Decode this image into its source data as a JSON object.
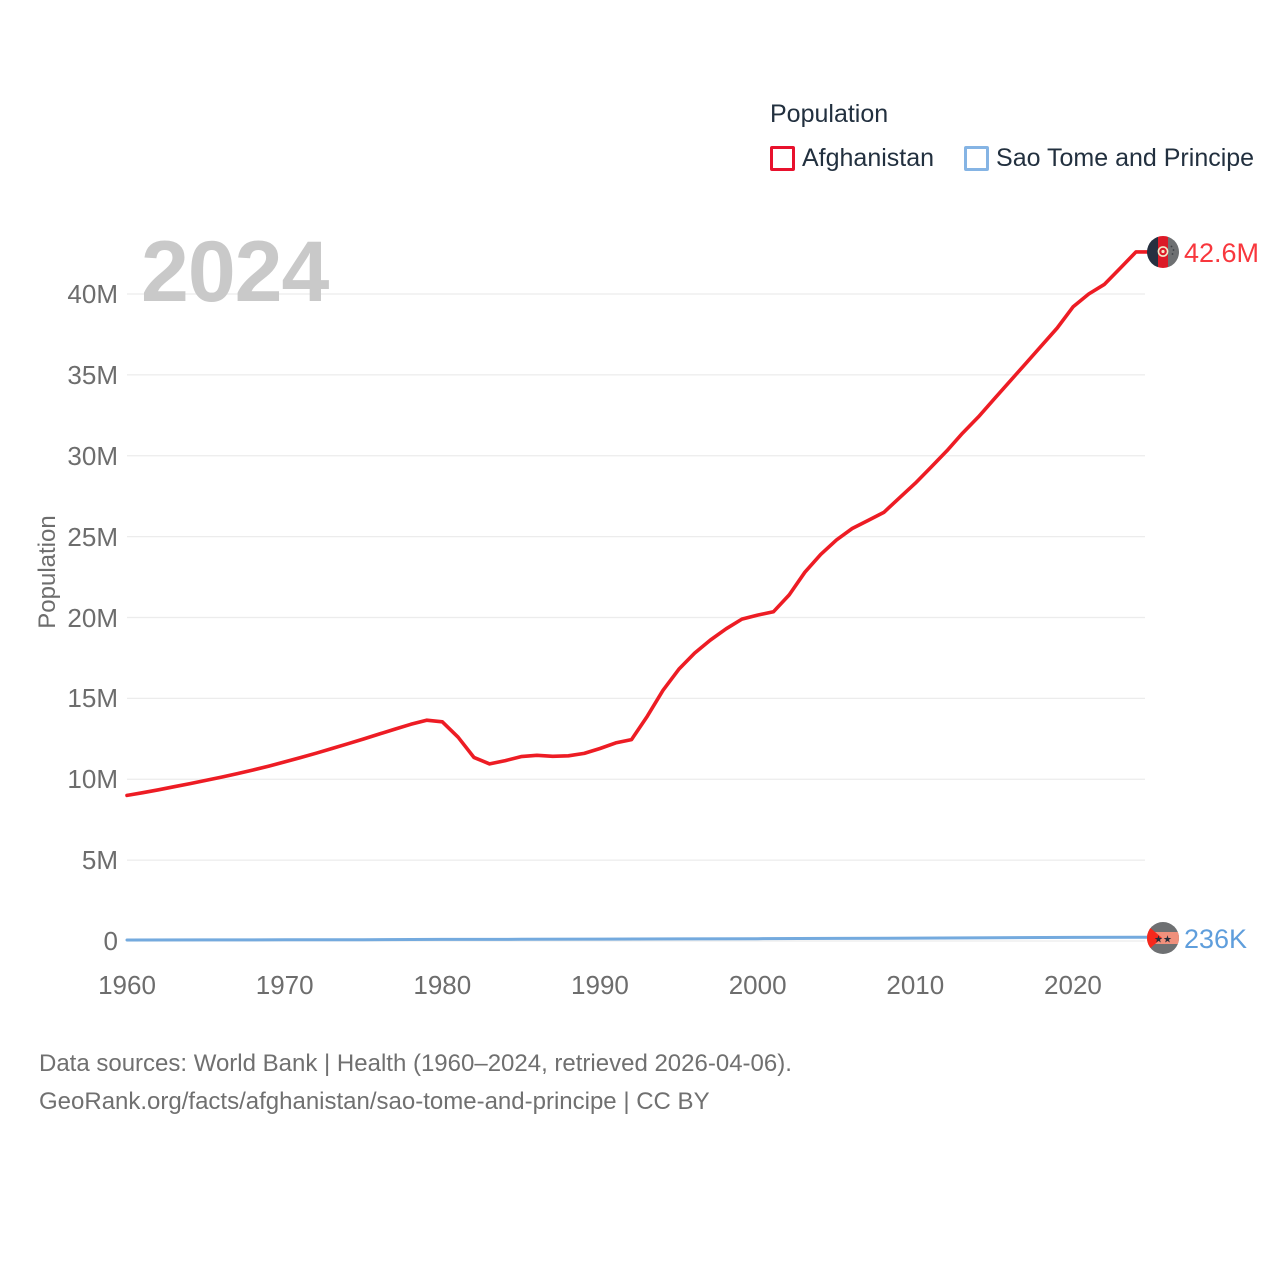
{
  "legend": {
    "title": "Population",
    "items": [
      {
        "label": "Afghanistan",
        "swatch_color": "#e8112d"
      },
      {
        "label": "Sao Tome and Principe",
        "swatch_color": "#85b4e4"
      }
    ]
  },
  "watermark_year": "2024",
  "chart_data": {
    "type": "line",
    "title": "",
    "xlabel": "",
    "ylabel": "Population",
    "grid": true,
    "legend_position": "top-right",
    "xlim": [
      1960,
      2024
    ],
    "ylim": [
      0,
      42.6
    ],
    "x_ticks": [
      1960,
      1970,
      1980,
      1990,
      2000,
      2010,
      2020
    ],
    "y_ticks": [
      {
        "value": 0,
        "label": "0"
      },
      {
        "value": 5,
        "label": "5M"
      },
      {
        "value": 10,
        "label": "10M"
      },
      {
        "value": 15,
        "label": "15M"
      },
      {
        "value": 20,
        "label": "20M"
      },
      {
        "value": 25,
        "label": "25M"
      },
      {
        "value": 30,
        "label": "30M"
      },
      {
        "value": 35,
        "label": "35M"
      },
      {
        "value": 40,
        "label": "40M"
      }
    ],
    "unit": "millions of people",
    "series": [
      {
        "name": "Afghanistan",
        "color": "#ed1c24",
        "end_label": "42.6M",
        "end_label_color": "#f8373d",
        "points": [
          [
            1960,
            9.0
          ],
          [
            1961,
            9.17
          ],
          [
            1962,
            9.35
          ],
          [
            1963,
            9.54
          ],
          [
            1964,
            9.73
          ],
          [
            1965,
            9.93
          ],
          [
            1966,
            10.13
          ],
          [
            1967,
            10.35
          ],
          [
            1968,
            10.57
          ],
          [
            1969,
            10.81
          ],
          [
            1970,
            11.07
          ],
          [
            1971,
            11.34
          ],
          [
            1972,
            11.61
          ],
          [
            1973,
            11.9
          ],
          [
            1974,
            12.19
          ],
          [
            1975,
            12.49
          ],
          [
            1976,
            12.8
          ],
          [
            1977,
            13.1
          ],
          [
            1978,
            13.4
          ],
          [
            1979,
            13.65
          ],
          [
            1980,
            13.55
          ],
          [
            1981,
            12.6
          ],
          [
            1982,
            11.35
          ],
          [
            1983,
            10.95
          ],
          [
            1984,
            11.15
          ],
          [
            1985,
            11.4
          ],
          [
            1986,
            11.48
          ],
          [
            1987,
            11.42
          ],
          [
            1988,
            11.45
          ],
          [
            1989,
            11.6
          ],
          [
            1990,
            11.9
          ],
          [
            1991,
            12.25
          ],
          [
            1992,
            12.45
          ],
          [
            1993,
            13.9
          ],
          [
            1994,
            15.5
          ],
          [
            1995,
            16.8
          ],
          [
            1996,
            17.8
          ],
          [
            1997,
            18.6
          ],
          [
            1998,
            19.3
          ],
          [
            1999,
            19.9
          ],
          [
            2000,
            20.15
          ],
          [
            2001,
            20.35
          ],
          [
            2002,
            21.4
          ],
          [
            2003,
            22.8
          ],
          [
            2004,
            23.9
          ],
          [
            2005,
            24.8
          ],
          [
            2006,
            25.5
          ],
          [
            2007,
            26.0
          ],
          [
            2008,
            26.5
          ],
          [
            2009,
            27.4
          ],
          [
            2010,
            28.3
          ],
          [
            2011,
            29.3
          ],
          [
            2012,
            30.3
          ],
          [
            2013,
            31.4
          ],
          [
            2014,
            32.4
          ],
          [
            2015,
            33.5
          ],
          [
            2016,
            34.6
          ],
          [
            2017,
            35.7
          ],
          [
            2018,
            36.8
          ],
          [
            2019,
            37.9
          ],
          [
            2020,
            39.2
          ],
          [
            2021,
            40.0
          ],
          [
            2022,
            40.6
          ],
          [
            2023,
            41.6
          ],
          [
            2024,
            42.6
          ]
        ]
      },
      {
        "name": "Sao Tome and Principe",
        "color": "#74aade",
        "end_label": "236K",
        "end_label_color": "#5f9edc",
        "points": [
          [
            1960,
            0.064
          ],
          [
            1965,
            0.069
          ],
          [
            1970,
            0.074
          ],
          [
            1975,
            0.082
          ],
          [
            1980,
            0.097
          ],
          [
            1985,
            0.108
          ],
          [
            1990,
            0.12
          ],
          [
            1995,
            0.132
          ],
          [
            2000,
            0.143
          ],
          [
            2005,
            0.159
          ],
          [
            2010,
            0.182
          ],
          [
            2015,
            0.203
          ],
          [
            2020,
            0.223
          ],
          [
            2024,
            0.236
          ]
        ]
      }
    ]
  },
  "colors": {
    "gridline": "#ececec",
    "axis_text": "#6d6d6d",
    "legend_text": "#22303f",
    "watermark": "#c9c9c9",
    "footer_text": "#707070"
  },
  "footer": {
    "line1": "Data sources: World Bank | Health (1960–2024, retrieved 2026-04-06).",
    "line2": "GeoRank.org/facts/afghanistan/sao-tome-and-principe | CC BY"
  }
}
